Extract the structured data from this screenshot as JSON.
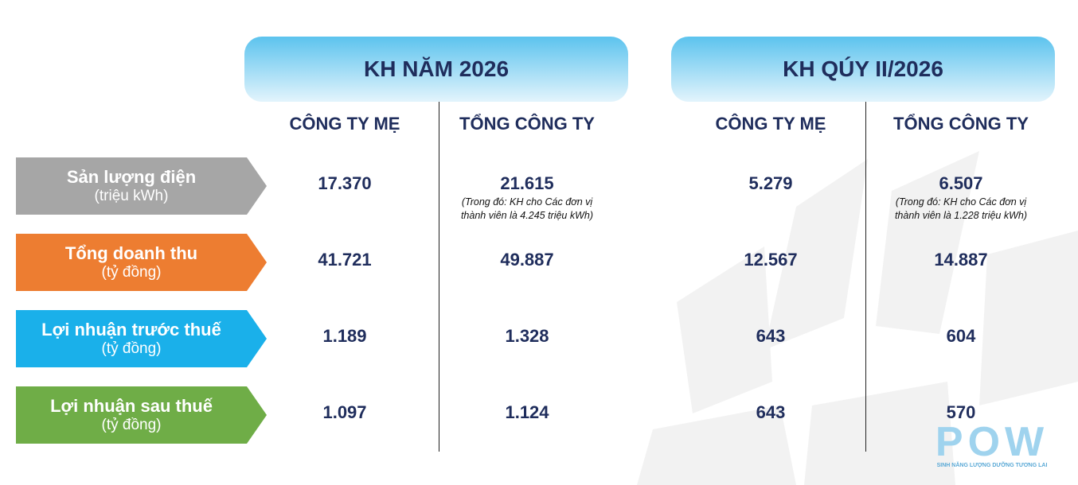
{
  "groups": [
    {
      "title": "KH NĂM 2026",
      "columns": [
        "CÔNG TY MẸ",
        "TỔNG CÔNG TY"
      ]
    },
    {
      "title": "KH QÚY II/2026",
      "columns": [
        "CÔNG TY MẸ",
        "TỔNG CÔNG TY"
      ]
    }
  ],
  "rows": [
    {
      "label": "Sản lượng điện",
      "unit": "(triệu kWh)",
      "values": [
        "17.370",
        "21.615",
        "5.279",
        "6.507"
      ],
      "notes": [
        null,
        [
          "(Trong đó: KH cho Các đơn vị",
          "thành viên là 4.245 triệu kWh)"
        ],
        null,
        [
          "(Trong đó: KH cho Các đơn vị",
          "thành viên là 1.228 triệu kWh)"
        ]
      ]
    },
    {
      "label": "Tổng doanh thu",
      "unit": "(tỷ đồng)",
      "values": [
        "41.721",
        "49.887",
        "12.567",
        "14.887"
      ]
    },
    {
      "label": "Lợi nhuận trước thuế",
      "unit": "(tỷ đồng)",
      "values": [
        "1.189",
        "1.328",
        "643",
        "604"
      ]
    },
    {
      "label": "Lợi nhuận sau thuế",
      "unit": "(tỷ đồng)",
      "values": [
        "1.097",
        "1.124",
        "643",
        "570"
      ]
    }
  ],
  "logo": {
    "text": "POW",
    "tagline": "SINH NĂNG LƯỢNG DƯỠNG TƯƠNG LAI"
  }
}
